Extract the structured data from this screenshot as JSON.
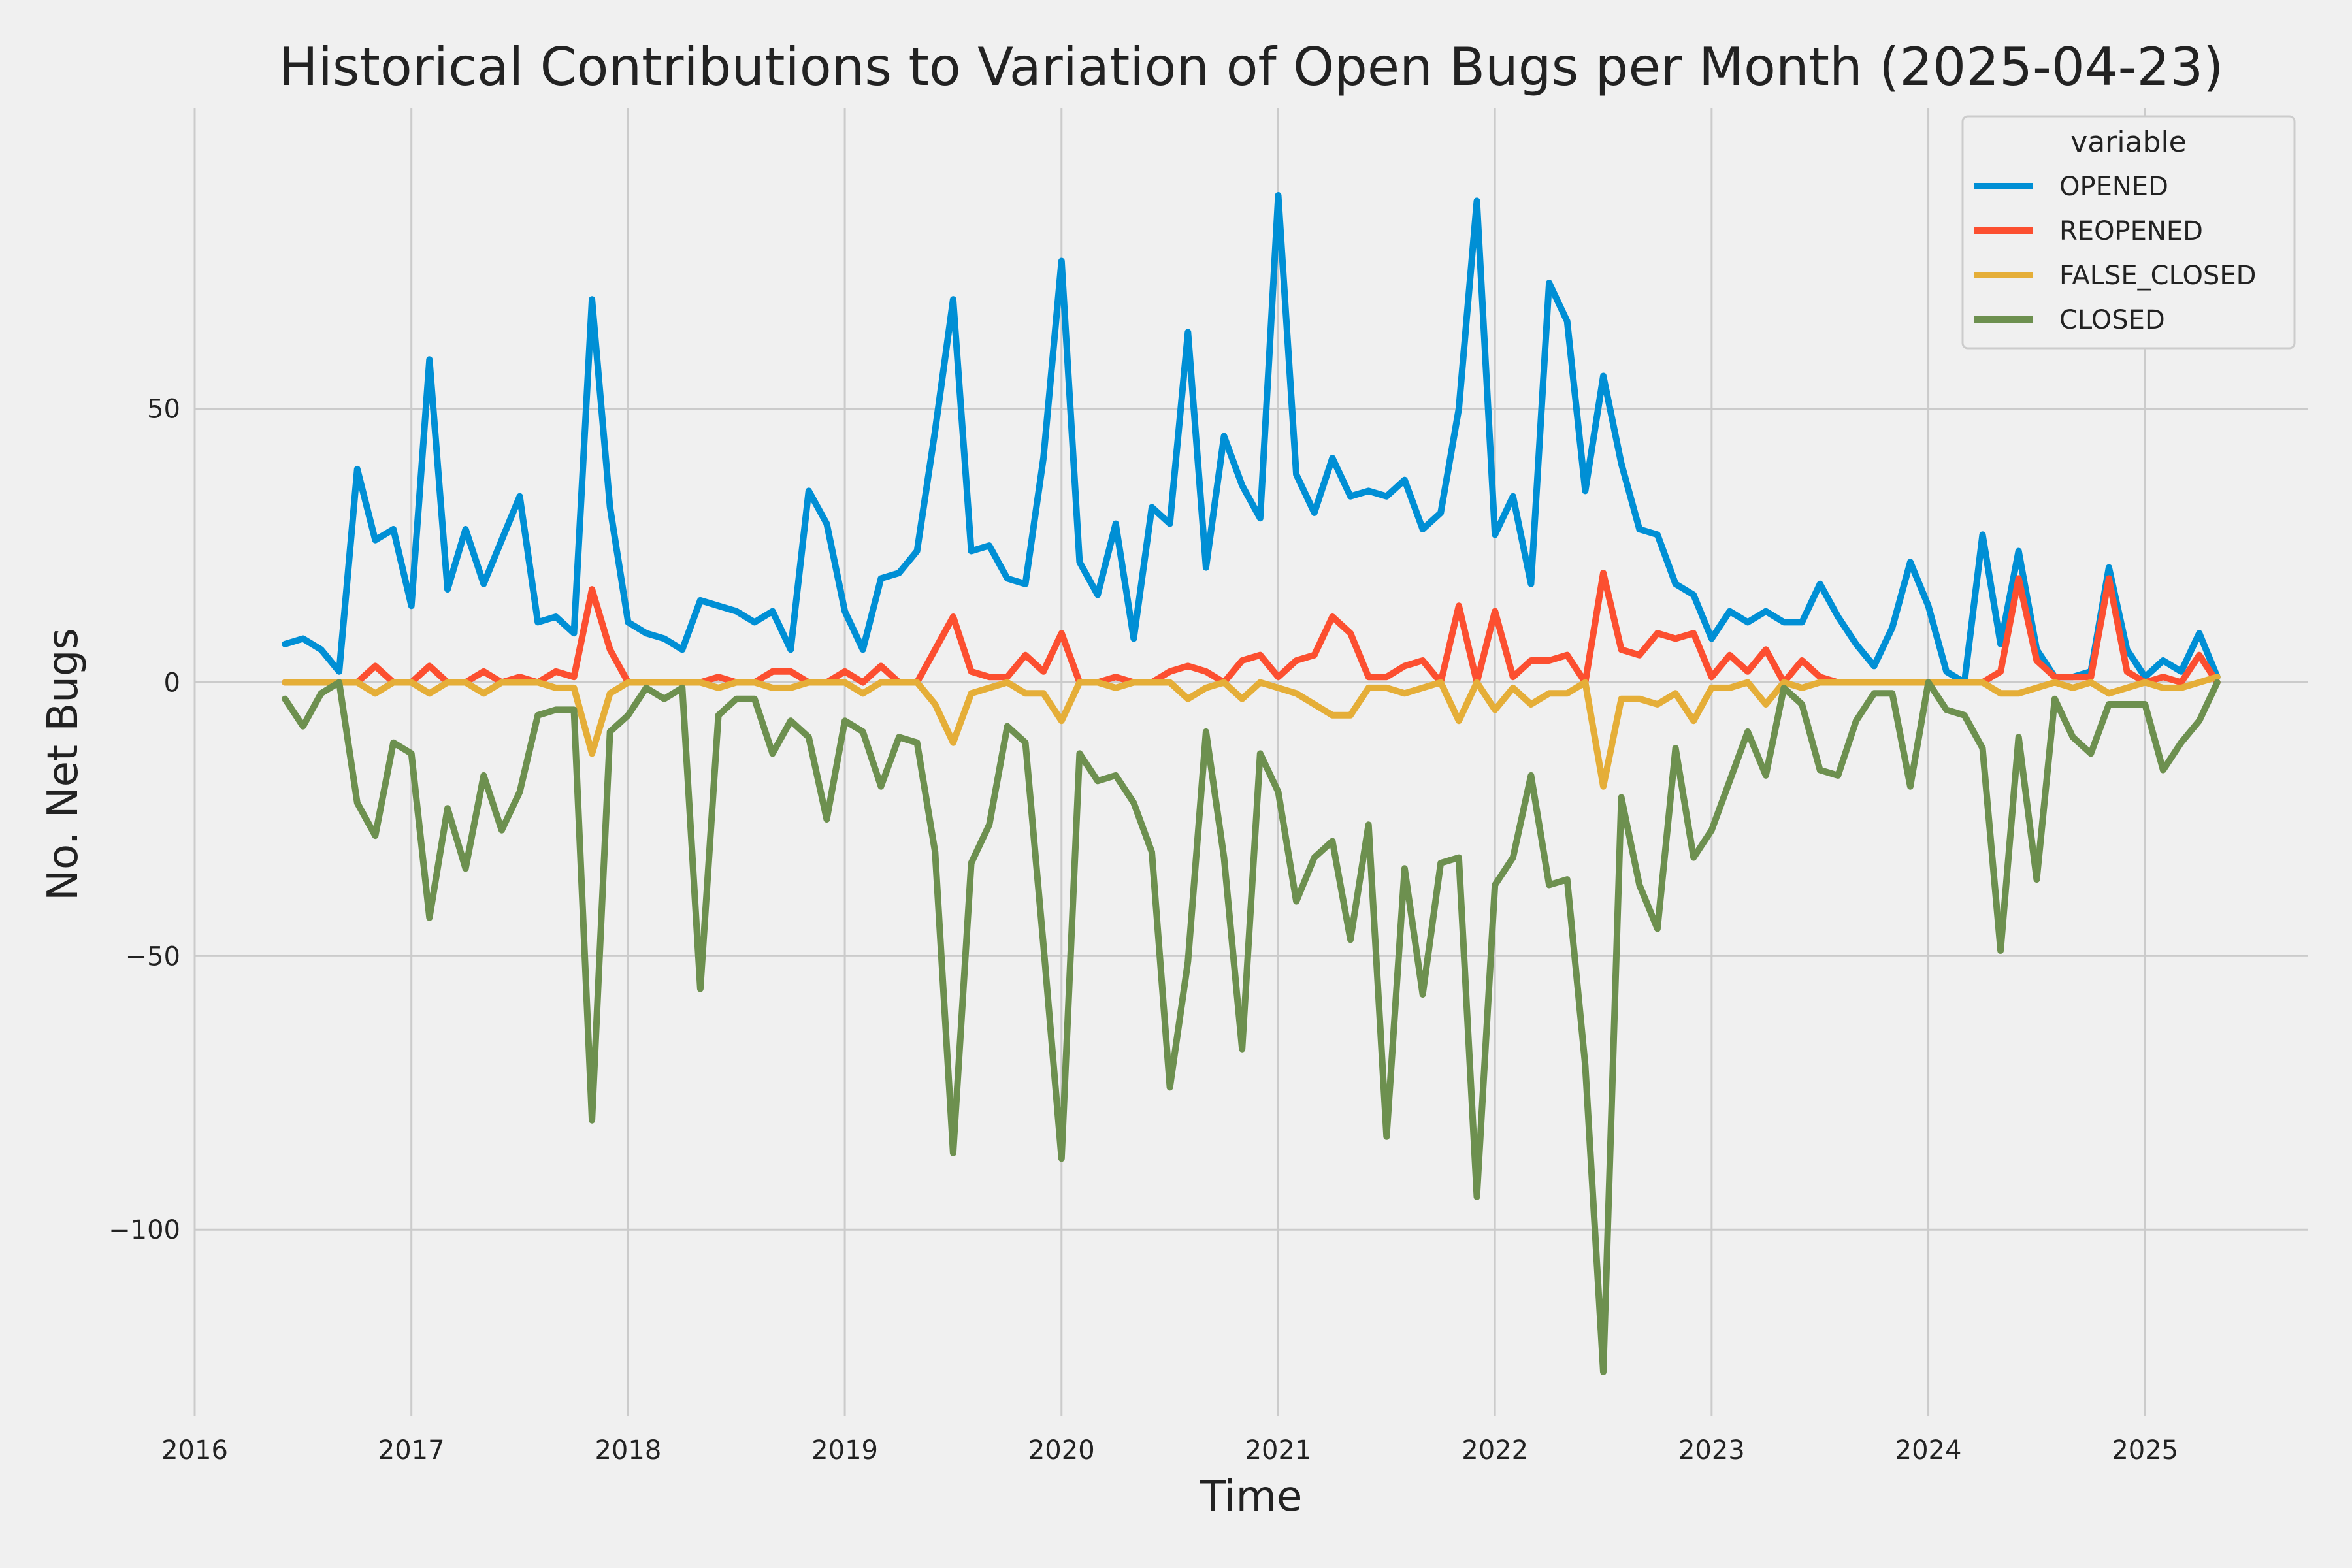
{
  "chart_data": {
    "type": "line",
    "title": "Historical Contributions to Variation of Open Bugs per Month (2025-04-23)",
    "xlabel": "Time",
    "ylabel": "No. Net Bugs",
    "x_start": "2016-06",
    "x_ticks": [
      "2016",
      "2017",
      "2018",
      "2019",
      "2020",
      "2021",
      "2022",
      "2023",
      "2024",
      "2025"
    ],
    "y_ticks": [
      50,
      0,
      -50,
      -100
    ],
    "y_tick_labels": [
      "50",
      "0",
      "−50",
      "−100"
    ],
    "xlim": [
      "2016-01",
      "2025-10"
    ],
    "ylim": [
      -134,
      105
    ],
    "grid": true,
    "legend": {
      "title": "variable",
      "position": "top-right"
    },
    "series": [
      {
        "name": "OPENED",
        "color": "#008fd5",
        "values": [
          7,
          8,
          6,
          2,
          39,
          26,
          28,
          14,
          59,
          17,
          28,
          18,
          26,
          34,
          11,
          12,
          9,
          70,
          32,
          11,
          9,
          8,
          6,
          15,
          14,
          13,
          11,
          13,
          6,
          35,
          29,
          13,
          6,
          19,
          20,
          24,
          46,
          70,
          24,
          25,
          19,
          18,
          41,
          77,
          22,
          16,
          29,
          8,
          32,
          29,
          64,
          21,
          45,
          36,
          30,
          89,
          38,
          31,
          41,
          34,
          35,
          34,
          37,
          28,
          31,
          50,
          88,
          27,
          34,
          18,
          73,
          66,
          35,
          56,
          40,
          28,
          27,
          18,
          16,
          8,
          13,
          11,
          13,
          11,
          11,
          18,
          12,
          7,
          3,
          10,
          22,
          14,
          2,
          0,
          27,
          7,
          24,
          6,
          1,
          1,
          2,
          21,
          6,
          1,
          4,
          2,
          9,
          1
        ]
      },
      {
        "name": "REOPENED",
        "color": "#fc4f30",
        "values": [
          0,
          0,
          0,
          0,
          0,
          3,
          0,
          0,
          3,
          0,
          0,
          2,
          0,
          1,
          0,
          2,
          1,
          17,
          6,
          0,
          0,
          0,
          0,
          0,
          1,
          0,
          0,
          2,
          2,
          0,
          0,
          2,
          0,
          3,
          0,
          0,
          6,
          12,
          2,
          1,
          1,
          5,
          2,
          9,
          0,
          0,
          1,
          0,
          0,
          2,
          3,
          2,
          0,
          4,
          5,
          1,
          4,
          5,
          12,
          9,
          1,
          1,
          3,
          4,
          0,
          14,
          0,
          13,
          1,
          4,
          4,
          5,
          0,
          20,
          6,
          5,
          9,
          8,
          9,
          1,
          5,
          2,
          6,
          0,
          4,
          1,
          0,
          0,
          0,
          0,
          0,
          0,
          0,
          0,
          0,
          2,
          19,
          4,
          1,
          1,
          1,
          19,
          2,
          0,
          1,
          0,
          5,
          0
        ]
      },
      {
        "name": "FALSE_CLOSED",
        "color": "#e5ae38",
        "values": [
          0,
          0,
          0,
          0,
          0,
          -2,
          0,
          0,
          -2,
          0,
          0,
          -2,
          0,
          0,
          0,
          -1,
          -1,
          -13,
          -2,
          0,
          0,
          0,
          0,
          0,
          -1,
          0,
          0,
          -1,
          -1,
          0,
          0,
          0,
          -2,
          0,
          0,
          0,
          -4,
          -11,
          -2,
          -1,
          0,
          -2,
          -2,
          -7,
          0,
          0,
          -1,
          0,
          0,
          0,
          -3,
          -1,
          0,
          -3,
          0,
          -1,
          -2,
          -4,
          -6,
          -6,
          -1,
          -1,
          -2,
          -1,
          0,
          -7,
          0,
          -5,
          -1,
          -4,
          -2,
          -2,
          0,
          -19,
          -3,
          -3,
          -4,
          -2,
          -7,
          -1,
          -1,
          0,
          -4,
          0,
          -1,
          0,
          0,
          0,
          0,
          0,
          0,
          0,
          0,
          0,
          0,
          -2,
          -2,
          -1,
          0,
          -1,
          0,
          -2,
          -1,
          0,
          -1,
          -1,
          0,
          1
        ]
      },
      {
        "name": "CLOSED",
        "color": "#6d904f",
        "values": [
          -3,
          -8,
          -2,
          0,
          -22,
          -28,
          -11,
          -13,
          -43,
          -23,
          -34,
          -17,
          -27,
          -20,
          -6,
          -5,
          -5,
          -80,
          -9,
          -6,
          -1,
          -3,
          -1,
          -56,
          -6,
          -3,
          -3,
          -13,
          -7,
          -10,
          -25,
          -7,
          -9,
          -19,
          -10,
          -11,
          -31,
          -86,
          -33,
          -26,
          -8,
          -11,
          -48,
          -87,
          -13,
          -18,
          -17,
          -22,
          -31,
          -74,
          -51,
          -9,
          -32,
          -67,
          -13,
          -20,
          -40,
          -32,
          -29,
          -47,
          -26,
          -83,
          -34,
          -57,
          -33,
          -32,
          -94,
          -37,
          -32,
          -17,
          -37,
          -36,
          -70,
          -126,
          -21,
          -37,
          -45,
          -12,
          -32,
          -27,
          -18,
          -9,
          -17,
          -1,
          -4,
          -16,
          -17,
          -7,
          -2,
          -2,
          -19,
          0,
          -5,
          -6,
          -12,
          -49,
          -10,
          -36,
          -3,
          -10,
          -13,
          -4,
          -4,
          -4,
          -16,
          -11,
          -7,
          0
        ]
      }
    ]
  }
}
